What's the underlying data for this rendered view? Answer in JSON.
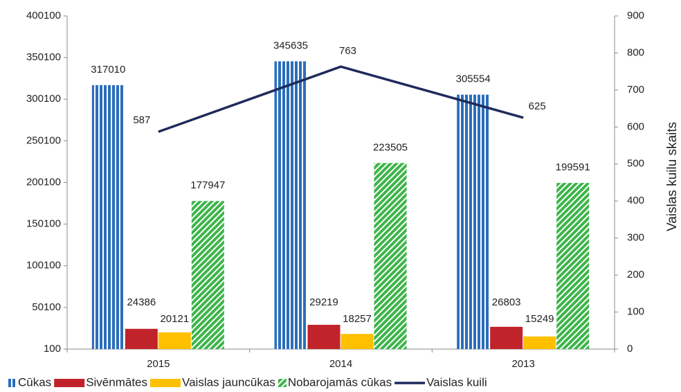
{
  "chart_data": {
    "type": "bar_line",
    "categories": [
      "2015",
      "2014",
      "2013"
    ],
    "series": [
      {
        "name": "Cūkas",
        "color": "#2a6ebb",
        "pattern": "vertical",
        "values": [
          317010,
          345635,
          305554
        ]
      },
      {
        "name": "Sivēnmātes",
        "color": "#c1232b",
        "values": [
          24386,
          29219,
          26803
        ]
      },
      {
        "name": "Vaislas jauncūkas",
        "color": "#ffc000",
        "values": [
          20121,
          18257,
          15249
        ]
      },
      {
        "name": "Nobarojamās cūkas",
        "color": "#3db54a",
        "pattern": "diagonal",
        "values": [
          177947,
          223505,
          199591
        ]
      },
      {
        "name": "Vaislas kuili",
        "color": "#1f2a5c",
        "type": "line",
        "axis": "y2",
        "values": [
          587,
          763,
          625
        ]
      }
    ],
    "y2_label": "Vaislas kuilu skaits",
    "ylim": [
      100,
      400100
    ],
    "yticks": [
      100,
      50100,
      100100,
      150100,
      200100,
      250100,
      300100,
      350100,
      400100
    ],
    "y2lim": [
      0,
      900
    ],
    "y2ticks": [
      0,
      100,
      200,
      300,
      400,
      500,
      600,
      700,
      800,
      900
    ],
    "legend": "bottom"
  }
}
